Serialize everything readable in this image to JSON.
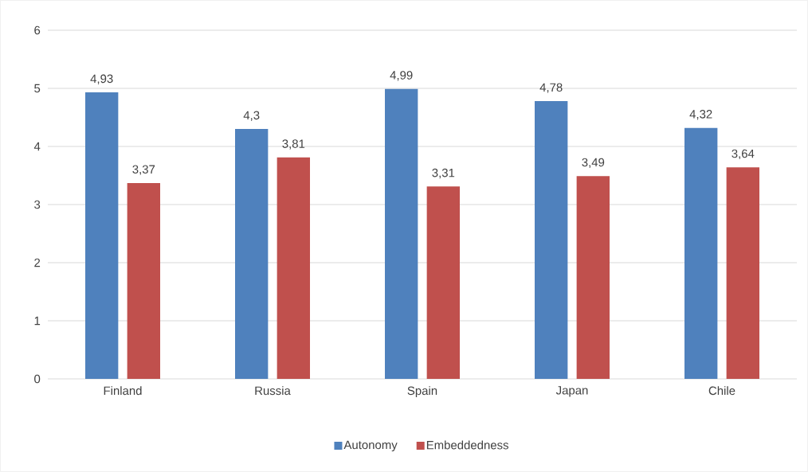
{
  "chart_data": {
    "type": "bar",
    "categories": [
      "Finland",
      "Russia",
      "Spain",
      "Japan",
      "Chile"
    ],
    "series": [
      {
        "name": "Autonomy",
        "color": "#4f81bd",
        "values": [
          4.93,
          4.3,
          4.99,
          4.78,
          4.32
        ],
        "value_labels": [
          "4,93",
          "4,3",
          "4,99",
          "4,78",
          "4,32"
        ]
      },
      {
        "name": "Embeddedness",
        "color": "#c0504d",
        "values": [
          3.37,
          3.81,
          3.31,
          3.49,
          3.64
        ],
        "value_labels": [
          "3,37",
          "3,81",
          "3,31",
          "3,49",
          "3,64"
        ]
      }
    ],
    "ylim": [
      0,
      6
    ],
    "yticks": [
      0,
      1,
      2,
      3,
      4,
      5,
      6
    ],
    "grid": "y",
    "legend": "bottom"
  }
}
